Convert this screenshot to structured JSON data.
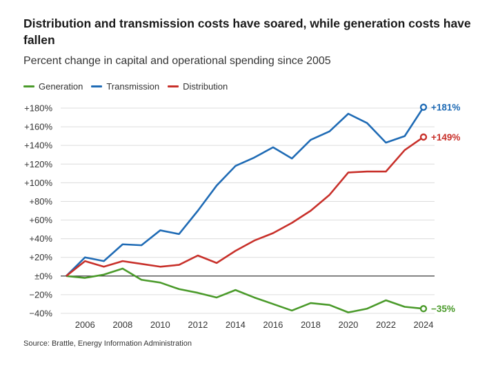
{
  "title": "Distribution and transmission costs have soared, while generation costs have fallen",
  "subtitle": "Percent change in capital and operational spending since 2005",
  "source": "Source: Brattle, Energy Information Administration",
  "chart_data": {
    "type": "line",
    "title": "Distribution and transmission costs have soared, while generation costs have fallen",
    "subtitle": "Percent change in capital and operational spending since 2005",
    "x": [
      2005,
      2006,
      2007,
      2008,
      2009,
      2010,
      2011,
      2012,
      2013,
      2014,
      2015,
      2016,
      2017,
      2018,
      2019,
      2020,
      2021,
      2022,
      2023,
      2024
    ],
    "xlim": [
      2005,
      2024
    ],
    "xticks": [
      2006,
      2008,
      2010,
      2012,
      2014,
      2016,
      2018,
      2020,
      2022,
      2024
    ],
    "ylim": [
      -40,
      180
    ],
    "yticks": [
      -40,
      -20,
      0,
      20,
      40,
      60,
      80,
      100,
      120,
      140,
      160,
      180
    ],
    "ytick_labels": [
      "−40%",
      "−20%",
      "±0%",
      "+20%",
      "+40%",
      "+60%",
      "+80%",
      "+100%",
      "+120%",
      "+140%",
      "+160%",
      "+180%"
    ],
    "grid": true,
    "legend_position": "top-left",
    "series": [
      {
        "name": "Generation",
        "color": "#4a9a2a",
        "end_label": "−35%",
        "values": [
          0,
          -2,
          1.5,
          8,
          -4,
          -7,
          -14,
          -18,
          -23,
          -15,
          -23,
          -30,
          -37,
          -29,
          -31,
          -39,
          -35,
          -26,
          -33,
          -35
        ]
      },
      {
        "name": "Transmission",
        "color": "#1f6bb5",
        "end_label": "+181%",
        "values": [
          0,
          20,
          16,
          34,
          33,
          49,
          45,
          70,
          97,
          118,
          127,
          138,
          126,
          146,
          155,
          174,
          164,
          143,
          150,
          181
        ]
      },
      {
        "name": "Distribution",
        "color": "#c8302a",
        "end_label": "+149%",
        "values": [
          0,
          16,
          10,
          16,
          13,
          10,
          12,
          22,
          14,
          27,
          38,
          46,
          57,
          70,
          87,
          111,
          112,
          112,
          135,
          149
        ]
      }
    ]
  }
}
